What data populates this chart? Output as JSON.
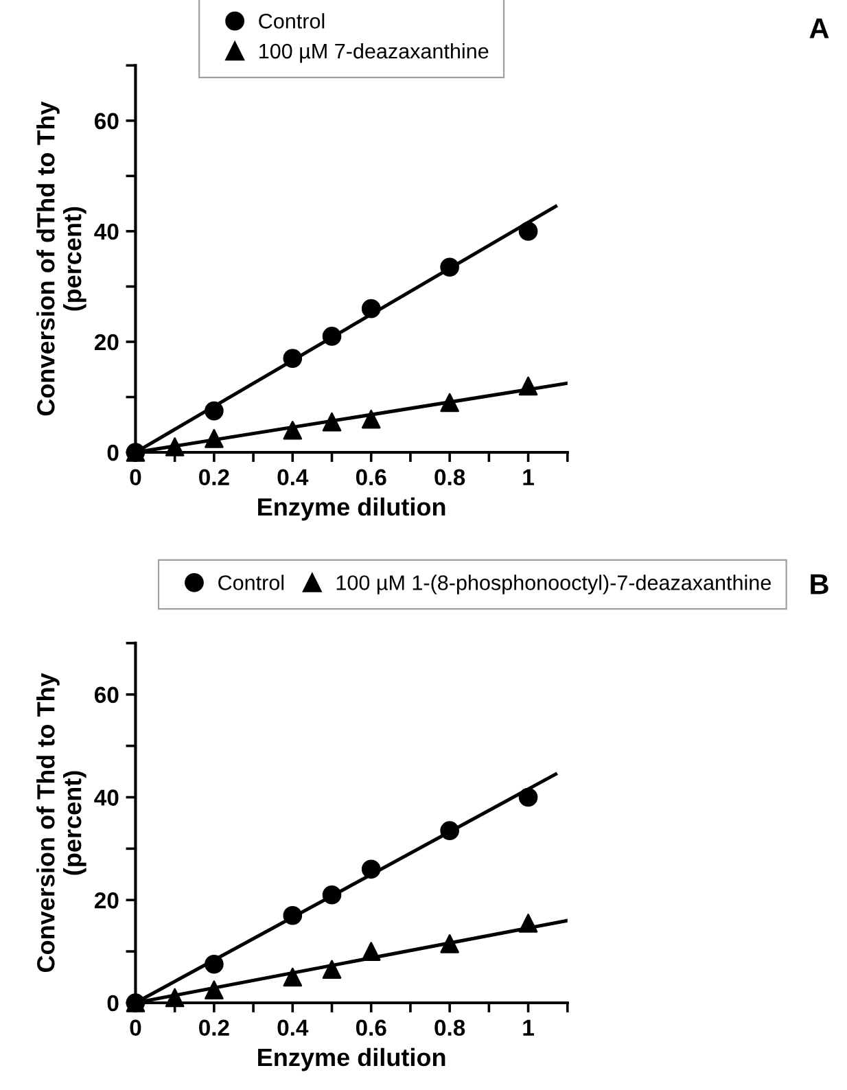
{
  "chart_data": [
    {
      "type": "scatter",
      "xlabel": "Enzyme dilution",
      "ylabel": "Conversion of dThd to Thy\n(percent)",
      "annotations": [
        "A"
      ],
      "xlim": [
        0,
        1.1
      ],
      "ylim": [
        0,
        70
      ],
      "xticks": [
        0,
        {
          "value": 0.1,
          "label": null
        },
        0.2,
        {
          "value": 0.3,
          "label": null
        },
        0.4,
        {
          "value": 0.5,
          "label": null
        },
        0.6,
        {
          "value": 0.7,
          "label": null
        },
        0.8,
        {
          "value": 0.9,
          "label": null
        },
        1,
        {
          "value": 1.1,
          "label": null
        }
      ],
      "yticks": [
        0,
        {
          "value": 10,
          "label": null
        },
        20,
        {
          "value": 30,
          "label": null
        },
        40,
        {
          "value": 50,
          "label": null
        },
        60,
        {
          "value": 70,
          "label": null
        }
      ],
      "legend": "top",
      "grid": false,
      "series": [
        {
          "name": "Control",
          "color": "#000000",
          "marker": "circle",
          "x": [
            0,
            0.2,
            0.4,
            0.5,
            0.6,
            0.8,
            1
          ],
          "values": [
            0,
            7.5,
            17,
            21,
            26,
            33.5,
            40
          ]
        },
        {
          "name": "100 µM 7-deazaxanthine",
          "color": "#000000",
          "marker": "triangle",
          "x": [
            0,
            0.1,
            0.2,
            0.4,
            0.5,
            0.6,
            0.8,
            1
          ],
          "values": [
            0,
            1,
            2.5,
            4,
            5.5,
            6,
            9,
            12
          ]
        },
        {
          "type": "line",
          "color": "#000000",
          "marker": "none",
          "line_style": "solid",
          "x": [
            0,
            1.07
          ],
          "values": [
            0,
            44.5
          ]
        },
        {
          "type": "line",
          "color": "#000000",
          "marker": "none",
          "line_style": "solid",
          "x": [
            0,
            1.1
          ],
          "values": [
            0,
            12.5
          ]
        }
      ]
    },
    {
      "type": "scatter",
      "xlabel": "Enzyme dilution",
      "ylabel": "Conversion of Thd to Thy\n(percent)",
      "annotations": [
        "B"
      ],
      "xlim": [
        0,
        1.1
      ],
      "ylim": [
        0,
        70
      ],
      "xticks": [
        0,
        {
          "value": 0.1,
          "label": null
        },
        0.2,
        {
          "value": 0.3,
          "label": null
        },
        0.4,
        {
          "value": 0.5,
          "label": null
        },
        0.6,
        {
          "value": 0.7,
          "label": null
        },
        0.8,
        {
          "value": 0.9,
          "label": null
        },
        1,
        {
          "value": 1.1,
          "label": null
        }
      ],
      "yticks": [
        0,
        {
          "value": 10,
          "label": null
        },
        20,
        {
          "value": 30,
          "label": null
        },
        40,
        {
          "value": 50,
          "label": null
        },
        60,
        {
          "value": 70,
          "label": null
        }
      ],
      "legend": "top",
      "grid": false,
      "series": [
        {
          "name": "Control",
          "color": "#000000",
          "marker": "circle",
          "x": [
            0,
            0.2,
            0.4,
            0.5,
            0.6,
            0.8,
            1
          ],
          "values": [
            0,
            7.5,
            17,
            21,
            26,
            33.5,
            40
          ]
        },
        {
          "name": "100 µM 1-(8-phosphonooctyl)-7-deazaxanthine",
          "color": "#000000",
          "marker": "triangle",
          "x": [
            0,
            0.1,
            0.2,
            0.4,
            0.5,
            0.6,
            0.8,
            1
          ],
          "values": [
            0,
            1,
            2.5,
            5,
            6.5,
            10,
            11.5,
            15.5
          ]
        },
        {
          "type": "line",
          "color": "#000000",
          "marker": "none",
          "line_style": "solid",
          "x": [
            0,
            1.07
          ],
          "values": [
            0,
            44.5
          ]
        },
        {
          "type": "line",
          "color": "#000000",
          "marker": "none",
          "line_style": "solid",
          "x": [
            0,
            1.1
          ],
          "values": [
            0,
            16
          ]
        }
      ]
    }
  ]
}
